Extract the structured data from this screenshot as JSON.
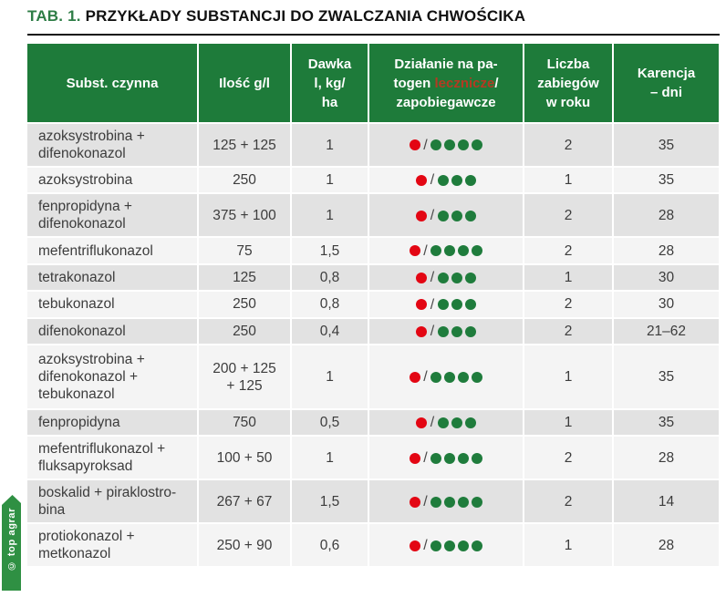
{
  "page": {
    "title_prefix": "TAB. 1.",
    "title_text": "PRZYKŁADY SUBSTANCJI DO ZWALCZANIA CHWOŚCIKA",
    "watermark": "© top agrar"
  },
  "colors": {
    "header_green": "#1e7b3a",
    "title_green": "#2e7d46",
    "red_dot": "#e30613",
    "green_dot": "#1f7c3c",
    "red_header_word": "#b53a22",
    "row_stripe_dark": "#e2e2e2",
    "row_stripe_light": "#f4f4f4",
    "ribbon_green": "#2f9043"
  },
  "table": {
    "headers": {
      "substance": [
        "Subst. czynna"
      ],
      "amount": [
        "Ilość g/l"
      ],
      "dose": [
        "Dawka",
        "l, kg/",
        "ha"
      ],
      "action": {
        "line1": "Działanie na pa-",
        "line2_pre": "togen ",
        "line2_red": "lecznicze",
        "line2_post": "/",
        "line3": "zapobiegawcze"
      },
      "treatments": [
        "Liczba",
        "zabiegów",
        "w roku"
      ],
      "waiting": [
        "Karencja",
        "– dni"
      ]
    },
    "dot_legend": {
      "red": "lecznicze",
      "green": "zapobiegawcze",
      "separator": "/"
    },
    "rows": [
      {
        "substance": [
          "azoksystrobina +",
          "difenokonazol"
        ],
        "amount": [
          "125 + 125"
        ],
        "dose": "1",
        "curative_dots": 1,
        "preventive_dots": 4,
        "treatments": "2",
        "waiting": "35"
      },
      {
        "substance": [
          "azoksystrobina"
        ],
        "amount": [
          "250"
        ],
        "dose": "1",
        "curative_dots": 1,
        "preventive_dots": 3,
        "treatments": "1",
        "waiting": "35"
      },
      {
        "substance": [
          "fenpropidyna +",
          "difenokonazol"
        ],
        "amount": [
          "375 + 100"
        ],
        "dose": "1",
        "curative_dots": 1,
        "preventive_dots": 3,
        "treatments": "2",
        "waiting": "28"
      },
      {
        "substance": [
          "mefentriflukonazol"
        ],
        "amount": [
          "75"
        ],
        "dose": "1,5",
        "curative_dots": 1,
        "preventive_dots": 4,
        "treatments": "2",
        "waiting": "28"
      },
      {
        "substance": [
          "tetrakonazol"
        ],
        "amount": [
          "125"
        ],
        "dose": "0,8",
        "curative_dots": 1,
        "preventive_dots": 3,
        "treatments": "1",
        "waiting": "30"
      },
      {
        "substance": [
          "tebukonazol"
        ],
        "amount": [
          "250"
        ],
        "dose": "0,8",
        "curative_dots": 1,
        "preventive_dots": 3,
        "treatments": "2",
        "waiting": "30"
      },
      {
        "substance": [
          "difenokonazol"
        ],
        "amount": [
          "250"
        ],
        "dose": "0,4",
        "curative_dots": 1,
        "preventive_dots": 3,
        "treatments": "2",
        "waiting": "21–62"
      },
      {
        "substance": [
          "azoksystrobina +",
          "difenokonazol +",
          "tebukonazol"
        ],
        "amount": [
          "200 + 125",
          "+ 125"
        ],
        "dose": "1",
        "curative_dots": 1,
        "preventive_dots": 4,
        "treatments": "1",
        "waiting": "35"
      },
      {
        "substance": [
          "fenpropidyna"
        ],
        "amount": [
          "750"
        ],
        "dose": "0,5",
        "curative_dots": 1,
        "preventive_dots": 3,
        "treatments": "1",
        "waiting": "35"
      },
      {
        "substance": [
          "mefentriflukonazol +",
          "fluksapyroksad"
        ],
        "amount": [
          "100 + 50"
        ],
        "dose": "1",
        "curative_dots": 1,
        "preventive_dots": 4,
        "treatments": "2",
        "waiting": "28"
      },
      {
        "substance": [
          "boskalid + piraklostro-",
          "bina"
        ],
        "amount": [
          "267 + 67"
        ],
        "dose": "1,5",
        "curative_dots": 1,
        "preventive_dots": 4,
        "treatments": "2",
        "waiting": "14"
      },
      {
        "substance": [
          "protiokonazol +",
          "metkonazol"
        ],
        "amount": [
          "250 + 90"
        ],
        "dose": "0,6",
        "curative_dots": 1,
        "preventive_dots": 4,
        "treatments": "1",
        "waiting": "28"
      }
    ]
  }
}
